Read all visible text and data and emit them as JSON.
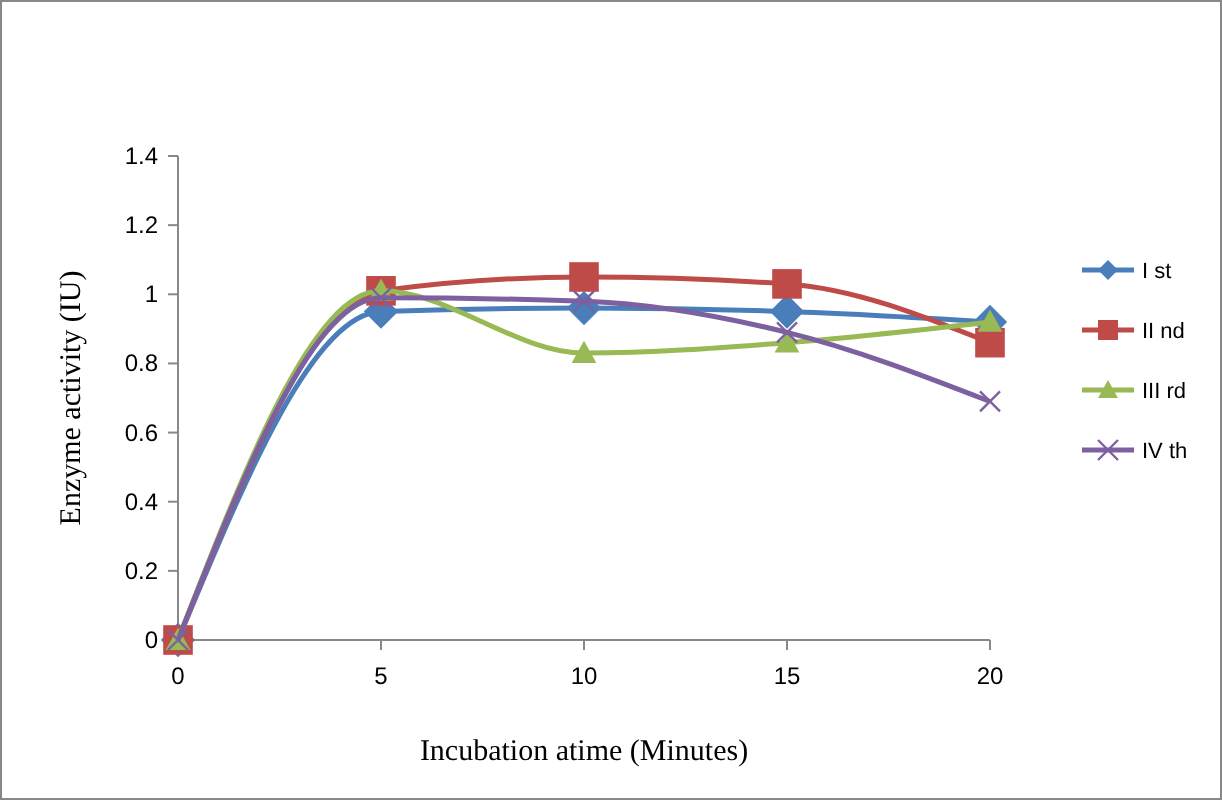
{
  "chart_data": {
    "type": "line",
    "xlabel": "Incubation atime (Minutes)",
    "ylabel": "Enzyme activity (IU)",
    "x": [
      0,
      5,
      10,
      15,
      20
    ],
    "series": [
      {
        "name": "I st",
        "color": "#4a7ebb",
        "marker": "diamond",
        "values": [
          0,
          0.95,
          0.96,
          0.95,
          0.92
        ]
      },
      {
        "name": "II nd",
        "color": "#be4b48",
        "marker": "square",
        "values": [
          0,
          1.01,
          1.05,
          1.03,
          0.86
        ]
      },
      {
        "name": "III rd",
        "color": "#98b954",
        "marker": "triangle",
        "values": [
          0,
          1.01,
          0.83,
          0.86,
          0.92
        ]
      },
      {
        "name": "IV th",
        "color": "#7d60a0",
        "marker": "cross",
        "values": [
          0,
          0.99,
          0.98,
          0.89,
          0.69
        ]
      }
    ],
    "xlim": [
      0,
      20
    ],
    "xticks": [
      0,
      5,
      10,
      15,
      20
    ],
    "ylim": [
      0,
      1.4
    ],
    "yticks": [
      {
        "value": 0,
        "label": "0"
      },
      {
        "value": 0.2,
        "label": "0.2"
      },
      {
        "value": 0.4,
        "label": "0.4"
      },
      {
        "value": 0.6,
        "label": "0.6"
      },
      {
        "value": 0.8,
        "label": "0.8"
      },
      {
        "value": 1,
        "label": "1"
      },
      {
        "value": 1.2,
        "label": "1.2"
      },
      {
        "value": 1.4,
        "label": "1.4"
      }
    ],
    "grid": false,
    "legend": "right",
    "line_style": "solid"
  }
}
